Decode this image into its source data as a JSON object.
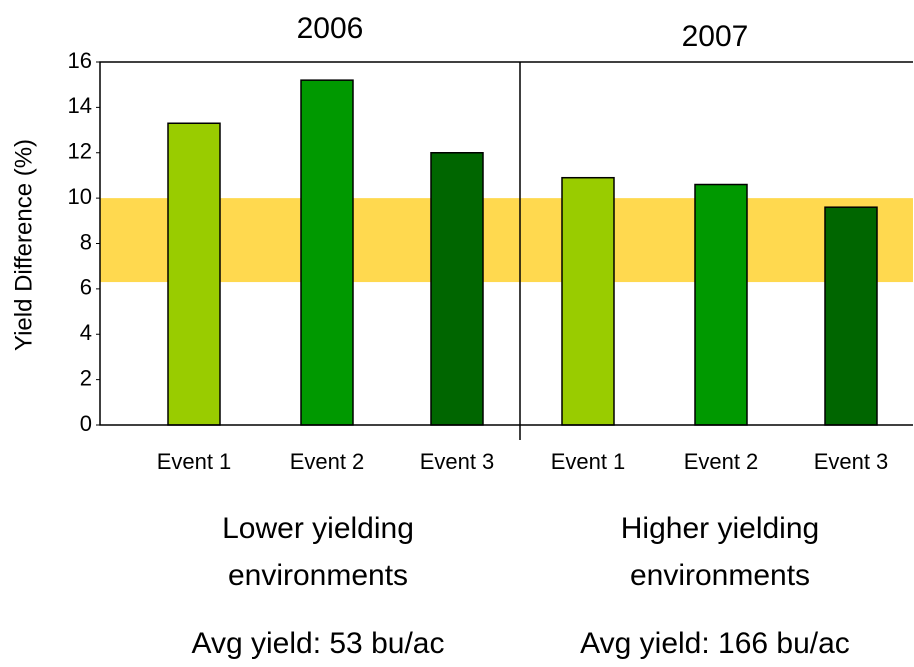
{
  "chart_data": {
    "type": "bar",
    "y_label": "Yield Difference  (%)",
    "categories": [
      "Event 1",
      "Event 2",
      "Event 3",
      "Event 1",
      "Event 2",
      "Event 3"
    ],
    "values": [
      13.3,
      15.2,
      12.0,
      10.9,
      10.6,
      9.6
    ],
    "colors": [
      "#99cc00",
      "#009900",
      "#006600",
      "#99cc00",
      "#009900",
      "#006600"
    ],
    "band": [
      6.3,
      10
    ],
    "band_color": "#ffd94f",
    "ylim": [
      0,
      16
    ],
    "yticks": [
      0,
      2,
      4,
      6,
      8,
      10,
      12,
      14,
      16
    ],
    "groups": [
      {
        "label": "2006",
        "description": [
          "Lower yielding",
          "environments"
        ],
        "note": "Avg yield: 53 bu/ac"
      },
      {
        "label": "2007",
        "description": [
          "Higher yielding",
          "environments"
        ],
        "note": "Avg yield: 166 bu/ac"
      }
    ]
  }
}
